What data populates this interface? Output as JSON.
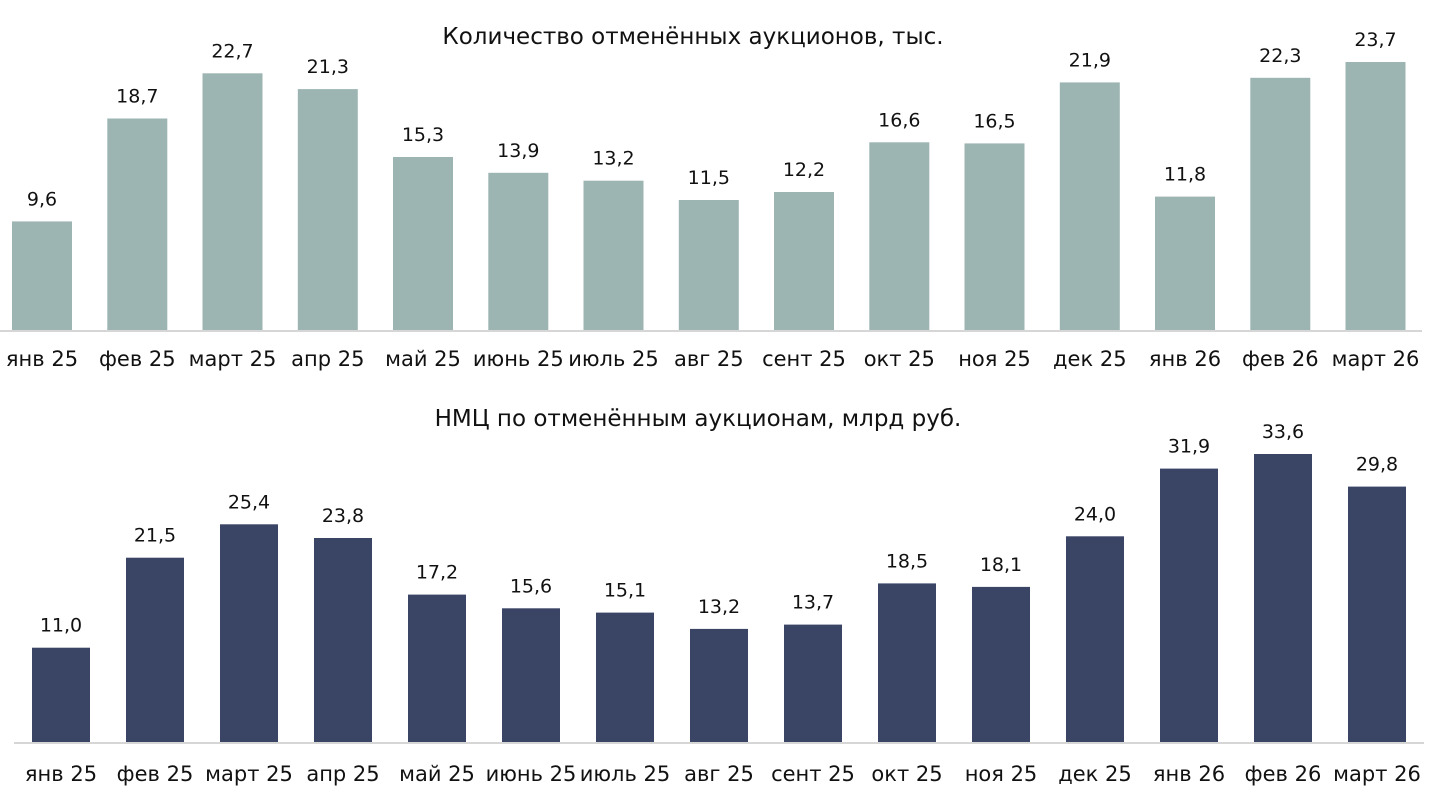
{
  "chart_data": [
    {
      "type": "bar",
      "title": "Количество отменённых аукционов, тыс.",
      "xlabel": "",
      "ylabel": "",
      "categories": [
        "янв 25",
        "фев 25",
        "март 25",
        "апр 25",
        "май 25",
        "июнь 25",
        "июль 25",
        "авг 25",
        "сент 25",
        "окт 25",
        "ноя 25",
        "дек 25",
        "янв 26",
        "фев 26",
        "март 26"
      ],
      "values": [
        9.6,
        18.7,
        22.7,
        21.3,
        15.3,
        13.9,
        13.2,
        11.5,
        12.2,
        16.6,
        16.5,
        21.9,
        11.8,
        22.3,
        23.7
      ],
      "value_labels": [
        "9,6",
        "18,7",
        "22,7",
        "21,3",
        "15,3",
        "13,9",
        "13,2",
        "11,5",
        "12,2",
        "16,6",
        "16,5",
        "21,9",
        "11,8",
        "22,3",
        "23,7"
      ],
      "ylim": [
        0,
        23.7
      ],
      "grid": false,
      "legend": "none",
      "bar_color": "#9db5b2",
      "axis_color": "#d6d6d6"
    },
    {
      "type": "bar",
      "title": "НМЦ по отменённым аукционам, млрд руб.",
      "xlabel": "",
      "ylabel": "",
      "categories": [
        "янв 25",
        "фев 25",
        "март 25",
        "апр 25",
        "май 25",
        "июнь 25",
        "июль 25",
        "авг 25",
        "сент 25",
        "окт 25",
        "ноя 25",
        "дек 25",
        "янв 26",
        "фев 26",
        "март 26"
      ],
      "values": [
        11.0,
        21.5,
        25.4,
        23.8,
        17.2,
        15.6,
        15.1,
        13.2,
        13.7,
        18.5,
        18.1,
        24.0,
        31.9,
        33.6,
        29.8
      ],
      "value_labels": [
        "11,0",
        "21,5",
        "25,4",
        "23,8",
        "17,2",
        "15,6",
        "15,1",
        "13,2",
        "13,7",
        "18,5",
        "18,1",
        "24,0",
        "31,9",
        "33,6",
        "29,8"
      ],
      "ylim": [
        0,
        33.6
      ],
      "grid": false,
      "legend": "none",
      "bar_color": "#3a4566",
      "axis_color": "#d6d6d6"
    }
  ]
}
